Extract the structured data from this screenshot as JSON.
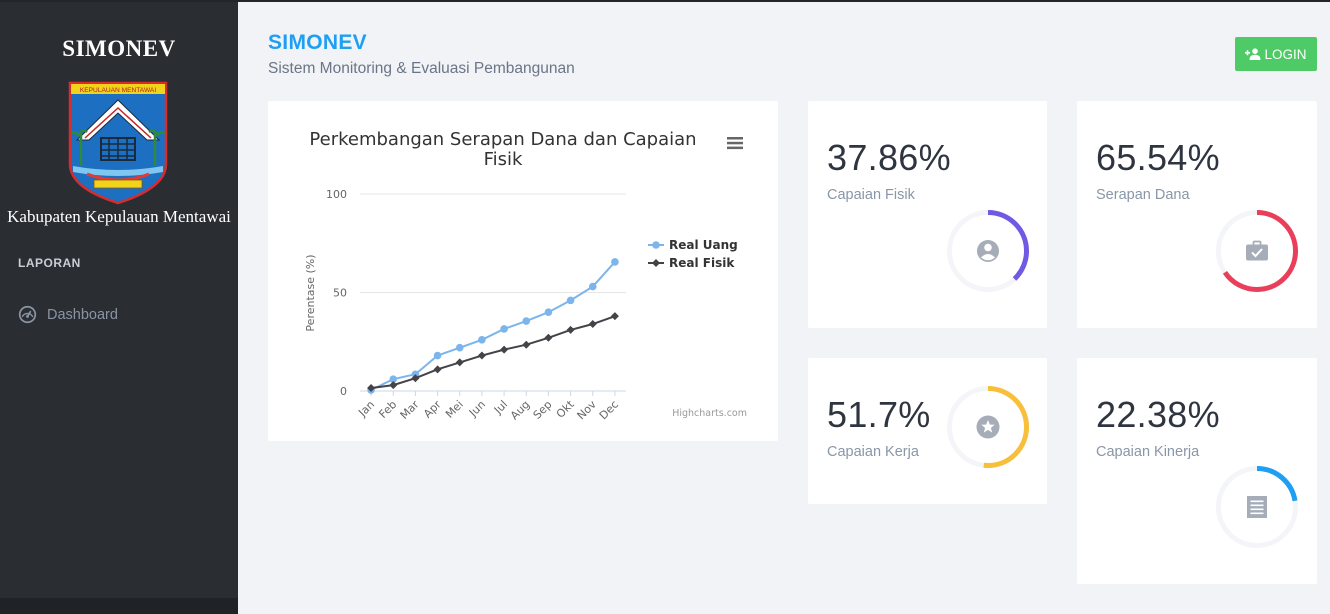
{
  "sidebar": {
    "brand": "SIMONEV",
    "logo_banner_text": "KEPULAUAN MENTAWAI",
    "region": "Kabupaten Kepulauan Mentawai",
    "section_title": "LAPORAN",
    "items": [
      {
        "label": "Dashboard",
        "icon": "dashboard-gauge-icon"
      }
    ]
  },
  "header": {
    "title": "SIMONEV",
    "subtitle": "Sistem Monitoring & Evaluasi Pembangunan",
    "login_label": "LOGIN",
    "login_icon": "user-add-icon"
  },
  "chart_data": {
    "type": "line",
    "title": "Perkembangan Serapan Dana dan Capaian Fisik",
    "title_lines": [
      "Perkembangan Serapan Dana dan Capaian",
      "Fisik"
    ],
    "xlabel": "",
    "ylabel": "Perentase (%)",
    "categories": [
      "Jan",
      "Feb",
      "Mar",
      "Apr",
      "Mei",
      "Jun",
      "Jul",
      "Aug",
      "Sep",
      "Okt",
      "Nov",
      "Dec"
    ],
    "ylim": [
      0,
      100
    ],
    "yticks": [
      0,
      50,
      100
    ],
    "grid": true,
    "legend_position": "right",
    "credits": "Highcharts.com",
    "series": [
      {
        "name": "Real Uang",
        "color": "#7cb5ec",
        "marker": "circle",
        "values": [
          0.5,
          6,
          8.5,
          18,
          22,
          26,
          31.5,
          35.5,
          40,
          46,
          53,
          65.5
        ]
      },
      {
        "name": "Real Fisik",
        "color": "#434348",
        "marker": "diamond",
        "values": [
          1.5,
          3,
          6.5,
          11,
          14.5,
          18,
          21,
          23.5,
          27,
          31,
          34,
          38
        ]
      }
    ]
  },
  "stats": [
    {
      "value": "37.86%",
      "label": "Capaian Fisik",
      "fraction": 0.3786,
      "color": "#7159e3",
      "icon": "user-circle-icon"
    },
    {
      "value": "65.54%",
      "label": "Serapan Dana",
      "fraction": 0.6554,
      "color": "#ea3f5a",
      "icon": "briefcase-check-icon"
    },
    {
      "value": "51.7%",
      "label": "Capaian Kerja",
      "fraction": 0.517,
      "color": "#f7bf3a",
      "icon": "star-circle-icon"
    },
    {
      "value": "22.38%",
      "label": "Capaian Kinerja",
      "fraction": 0.2238,
      "color": "#1e9ff2",
      "icon": "receipt-icon"
    }
  ]
}
